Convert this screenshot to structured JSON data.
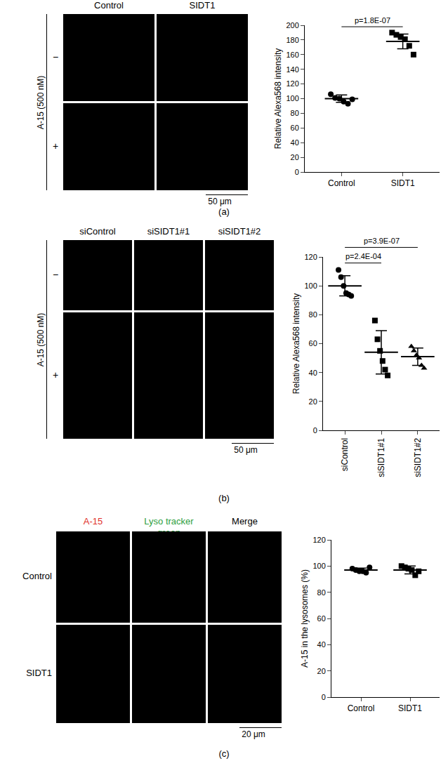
{
  "image_panels": [
    {
      "letter": "(a)",
      "columns": [
        "Control",
        "SIDT1"
      ],
      "column_colors": [
        "#000000",
        "#000000"
      ],
      "row_header": "A-15 (500 nM)",
      "rows": [
        "−",
        "+"
      ],
      "scale_bar": "50 μm"
    },
    {
      "letter": "(b)",
      "columns": [
        "siControl",
        "siSIDT1#1",
        "siSIDT1#2"
      ],
      "column_colors": [
        "#000000",
        "#000000",
        "#000000"
      ],
      "row_header": "A-15 (500 nM)",
      "rows": [
        "−",
        "+"
      ],
      "scale_bar": "50 μm"
    },
    {
      "letter": "(c)",
      "columns": [
        "A-15",
        "Lyso tracker green",
        "Merge"
      ],
      "column_colors": [
        "#e0302a",
        "#2e9e3e",
        "#000000"
      ],
      "rows": [
        "Control",
        "SIDT1"
      ],
      "scale_bar": "20 μm"
    }
  ],
  "chart_data": [
    {
      "type": "dot_plot",
      "y_title": "Relative Alexa568 intensity",
      "ylim": [
        0,
        200
      ],
      "yticks": [
        0,
        20,
        40,
        60,
        80,
        100,
        120,
        140,
        160,
        180,
        200
      ],
      "grid": false,
      "tick_labels": true,
      "series": [
        {
          "name": "Control",
          "marker": "circle",
          "color": "#000000",
          "values": [
            106,
            101,
            100,
            96,
            93,
            99
          ],
          "mean": 100,
          "sd": 5
        },
        {
          "name": "SIDT1",
          "marker": "square",
          "color": "#000000",
          "values": [
            190,
            187,
            184,
            181,
            172,
            160
          ],
          "mean": 178,
          "sd": 10
        }
      ],
      "comparisons": [
        {
          "groups": [
            "Control",
            "SIDT1"
          ],
          "label": "p=1.8E-07"
        }
      ]
    },
    {
      "type": "dot_plot",
      "y_title": "Relative Alexa568 intensity",
      "ylim": [
        0,
        120
      ],
      "yticks": [
        0,
        20,
        40,
        60,
        80,
        100,
        120
      ],
      "grid": false,
      "tick_labels": true,
      "series": [
        {
          "name": "siControl",
          "marker": "circle",
          "color": "#000000",
          "values": [
            111,
            106,
            100,
            95,
            94,
            93
          ],
          "mean": 100,
          "sd": 7
        },
        {
          "name": "siSIDT1#1",
          "marker": "square",
          "color": "#000000",
          "values": [
            76,
            63,
            55,
            48,
            42,
            38
          ],
          "mean": 54,
          "sd": 15
        },
        {
          "name": "siSIDT1#2",
          "marker": "triangle-up",
          "color": "#000000",
          "values": [
            58,
            55,
            52,
            50,
            45,
            43
          ],
          "mean": 51,
          "sd": 6
        }
      ],
      "comparisons": [
        {
          "groups": [
            "siControl",
            "siSIDT1#1"
          ],
          "label": "p=2.4E-04"
        },
        {
          "groups": [
            "siControl",
            "siSIDT1#2"
          ],
          "label": "p=3.9E-07"
        }
      ]
    },
    {
      "type": "dot_plot",
      "y_title": "A-15 in the lysosomes (%)",
      "ylim": [
        0,
        120
      ],
      "yticks": [
        0,
        20,
        40,
        60,
        80,
        100,
        120
      ],
      "grid": false,
      "tick_labels": true,
      "series": [
        {
          "name": "Control",
          "marker": "circle",
          "color": "#000000",
          "values": [
            98,
            97,
            96,
            96,
            95,
            99
          ],
          "mean": 97,
          "sd": 1.5
        },
        {
          "name": "SIDT1",
          "marker": "square",
          "color": "#000000",
          "values": [
            100,
            99,
            98,
            97,
            93,
            96
          ],
          "mean": 97,
          "sd": 3
        }
      ],
      "comparisons": []
    }
  ]
}
